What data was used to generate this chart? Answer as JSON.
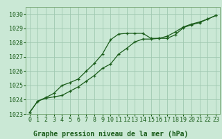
{
  "xlabel": "Graphe pression niveau de la mer (hPa)",
  "bg_color": "#cae8d5",
  "plot_bg_color": "#cae8d5",
  "grid_color": "#a0c8b0",
  "line_color": "#1a5c1a",
  "border_color": "#7aaa7a",
  "ylim": [
    1023,
    1030.5
  ],
  "xlim": [
    -0.5,
    23.5
  ],
  "yticks": [
    1023,
    1024,
    1025,
    1026,
    1027,
    1028,
    1029,
    1030
  ],
  "xticks": [
    0,
    1,
    2,
    3,
    4,
    5,
    6,
    7,
    8,
    9,
    10,
    11,
    12,
    13,
    14,
    15,
    16,
    17,
    18,
    19,
    20,
    21,
    22,
    23
  ],
  "series1_x": [
    0,
    1,
    2,
    3,
    4,
    5,
    6,
    7,
    8,
    9,
    10,
    11,
    12,
    13,
    14,
    15,
    16,
    17,
    18,
    19,
    20,
    21,
    22,
    23
  ],
  "series1_y": [
    1023.1,
    1023.9,
    1024.1,
    1024.2,
    1024.3,
    1024.6,
    1024.9,
    1025.3,
    1025.7,
    1026.2,
    1026.5,
    1027.2,
    1027.6,
    1028.05,
    1028.25,
    1028.25,
    1028.3,
    1028.3,
    1028.55,
    1029.05,
    1029.25,
    1029.4,
    1029.65,
    1029.9
  ],
  "series2_x": [
    0,
    1,
    2,
    3,
    4,
    5,
    6,
    7,
    8,
    9,
    10,
    11,
    12,
    13,
    14,
    15,
    16,
    17,
    18,
    19,
    20,
    21,
    22,
    23
  ],
  "series2_y": [
    1023.1,
    1023.9,
    1024.15,
    1024.45,
    1025.0,
    1025.2,
    1025.45,
    1026.0,
    1026.55,
    1027.2,
    1028.2,
    1028.6,
    1028.65,
    1028.65,
    1028.65,
    1028.3,
    1028.3,
    1028.45,
    1028.75,
    1029.1,
    1029.3,
    1029.45,
    1029.65,
    1029.9
  ],
  "tick_fontsize": 6,
  "xlabel_fontsize": 7,
  "marker_size": 3.5,
  "line_width": 0.9
}
